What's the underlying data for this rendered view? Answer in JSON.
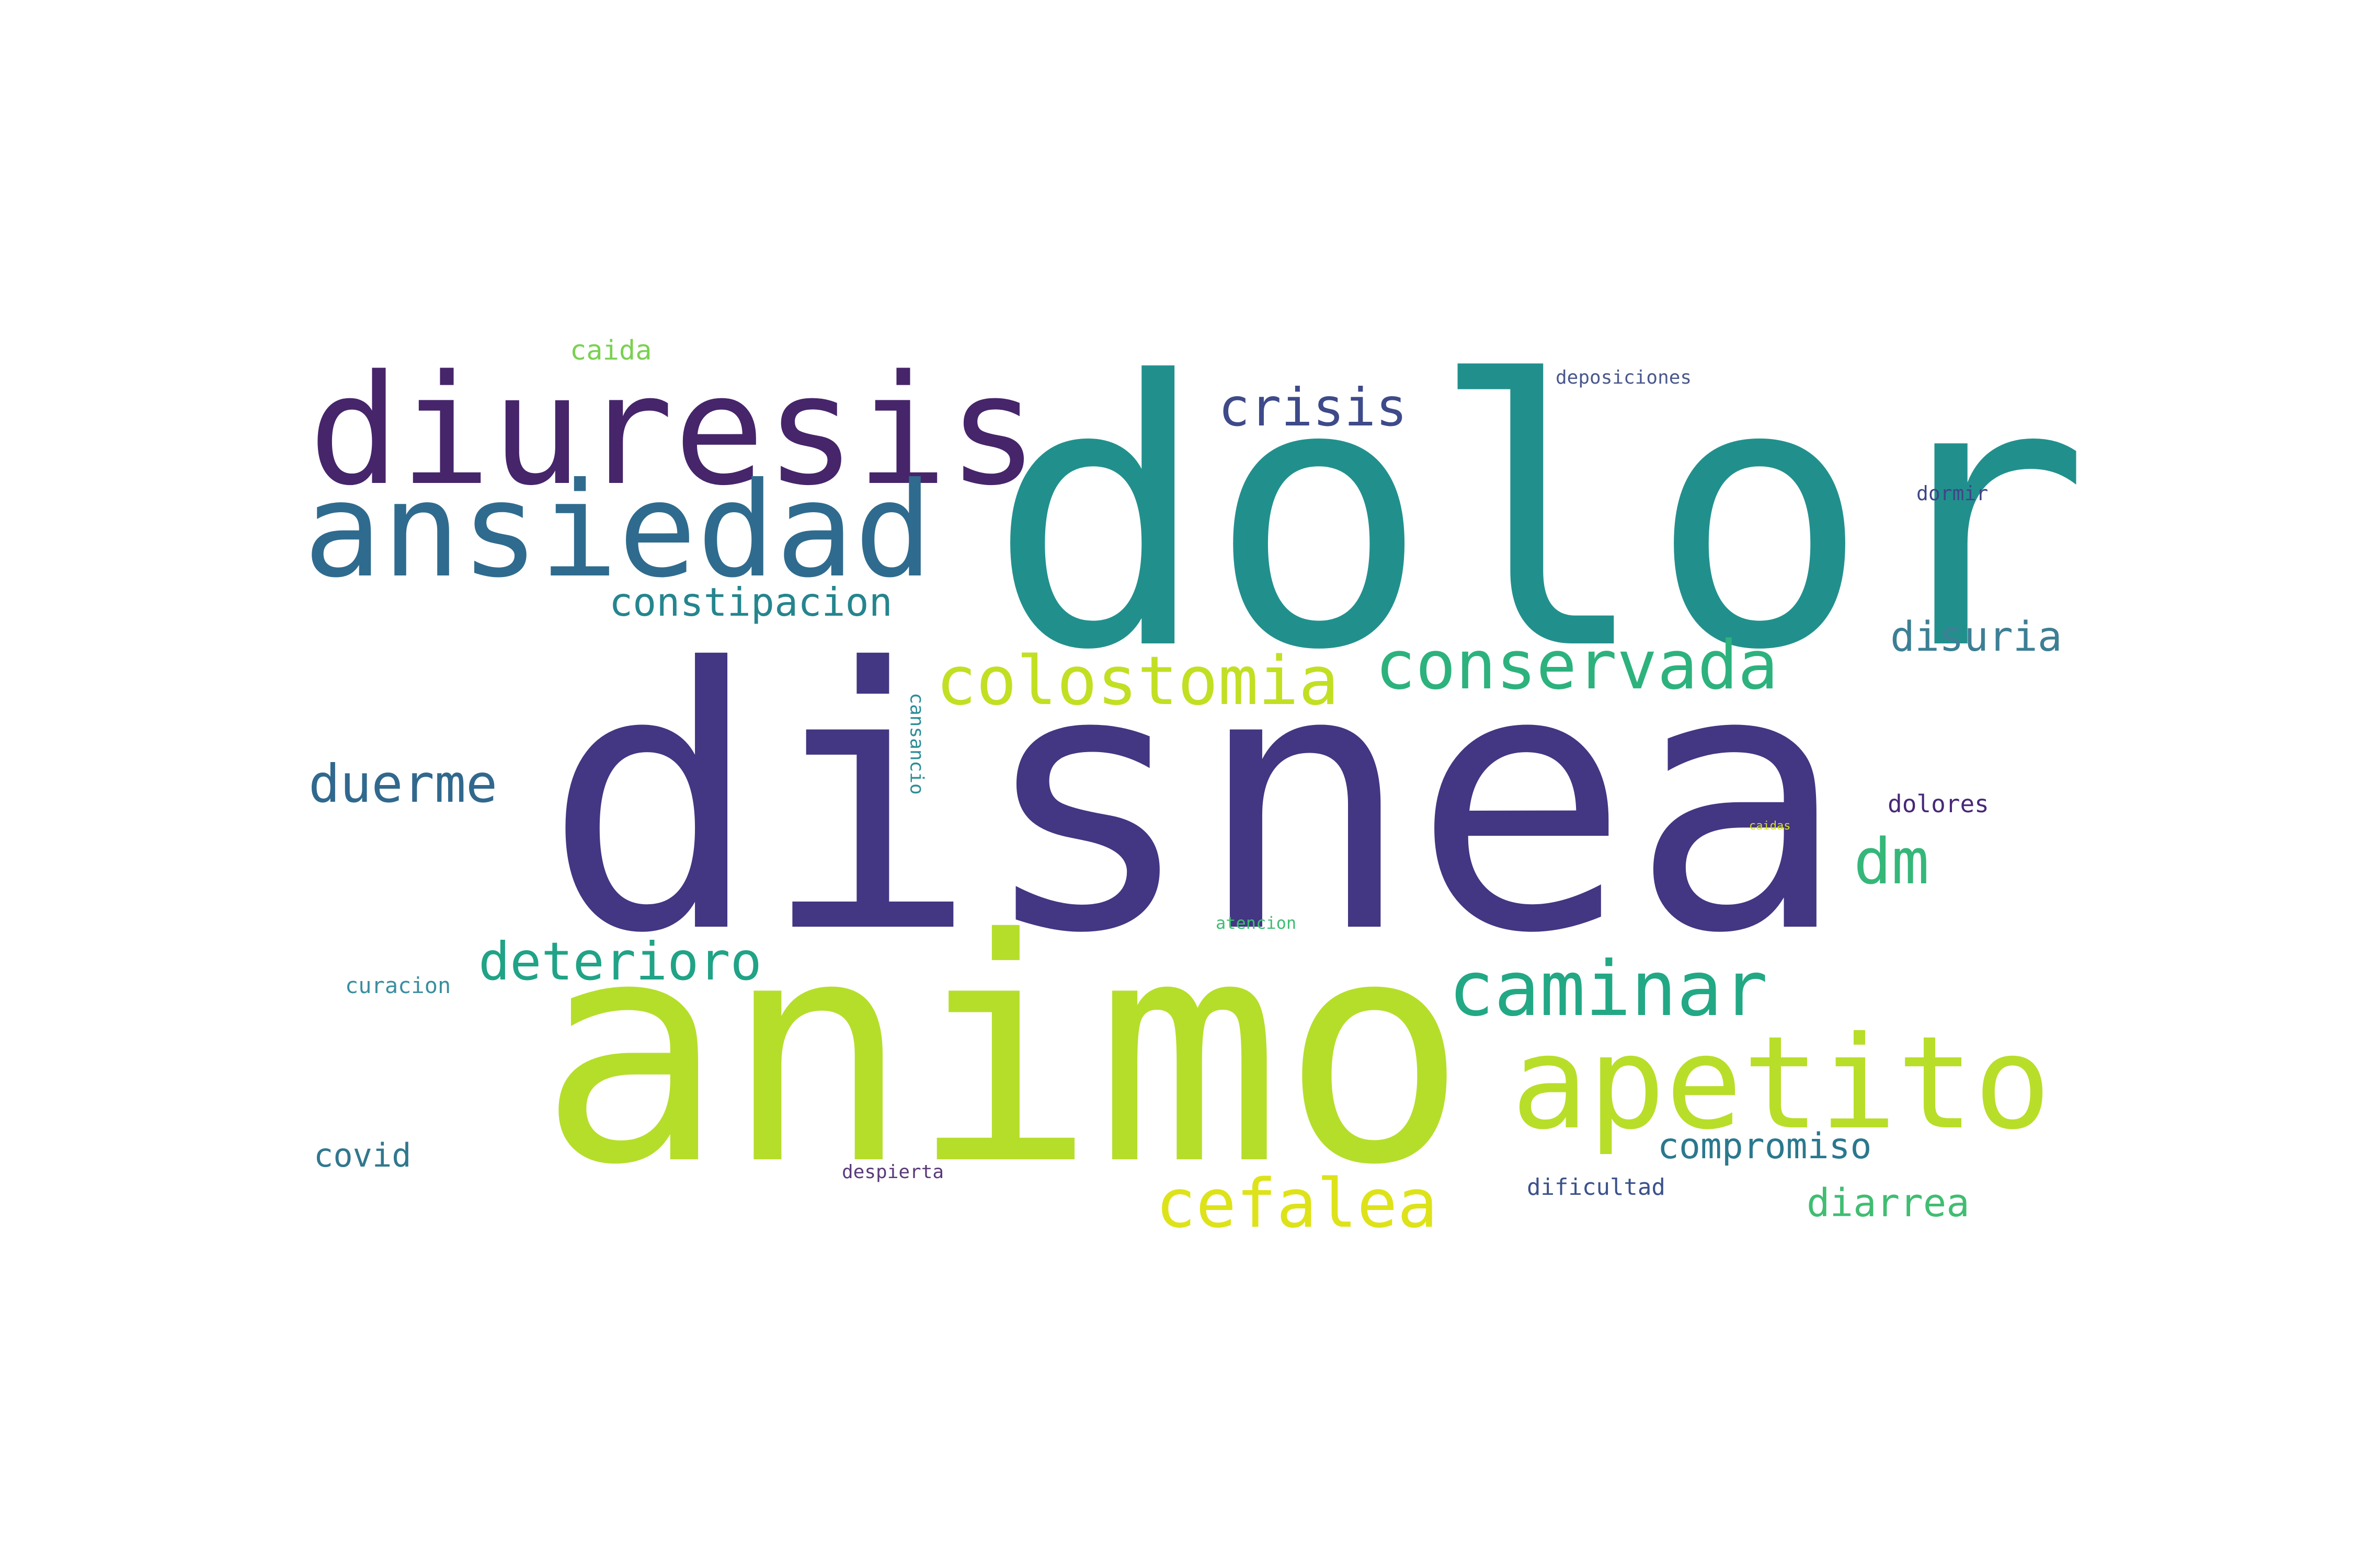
{
  "words": {
    "dolor": {
      "text": "dolor",
      "color": "#21908d"
    },
    "disnea": {
      "text": "disnea",
      "color": "#433683"
    },
    "animo": {
      "text": "animo",
      "color": "#b5de2b"
    },
    "diuresis": {
      "text": "diuresis",
      "color": "#46256b"
    },
    "ansiedad": {
      "text": "ansiedad",
      "color": "#2f6b8e"
    },
    "apetito": {
      "text": "apetito",
      "color": "#b8de29"
    },
    "caminar": {
      "text": "caminar",
      "color": "#22a884"
    },
    "colostomia": {
      "text": "colostomia",
      "color": "#c2df23"
    },
    "conservada": {
      "text": "conservada",
      "color": "#2db27d"
    },
    "cefalea": {
      "text": "cefalea",
      "color": "#dde318"
    },
    "crisis": {
      "text": "crisis",
      "color": "#3e4a89"
    },
    "duerme": {
      "text": "duerme",
      "color": "#31688e"
    },
    "deterioro": {
      "text": "deterioro",
      "color": "#20a386"
    },
    "dm": {
      "text": "dm",
      "color": "#35b779"
    },
    "constipacion": {
      "text": "constipacion",
      "color": "#25858e"
    },
    "disuria": {
      "text": "disuria",
      "color": "#3d7f94"
    },
    "compromiso": {
      "text": "compromiso",
      "color": "#2a788e"
    },
    "diarrea": {
      "text": "diarrea",
      "color": "#40bd72"
    },
    "covid": {
      "text": "covid",
      "color": "#31778f"
    },
    "caida": {
      "text": "caida",
      "color": "#7ad151"
    },
    "deposiciones": {
      "text": "deposiciones",
      "color": "#4a588c"
    },
    "dormir": {
      "text": "dormir",
      "color": "#414487"
    },
    "dolores": {
      "text": "dolores",
      "color": "#482878"
    },
    "dificultad": {
      "text": "dificultad",
      "color": "#3b528b"
    },
    "despierta": {
      "text": "despierta",
      "color": "#5b3a7a"
    },
    "curacion": {
      "text": "curacion",
      "color": "#3b8ea0"
    },
    "atencion": {
      "text": "atencion",
      "color": "#3fbc73"
    },
    "cansancio": {
      "text": "cansancio",
      "color": "#2c8d96"
    },
    "caidas": {
      "text": "caidas",
      "color": "#d8e219"
    }
  }
}
